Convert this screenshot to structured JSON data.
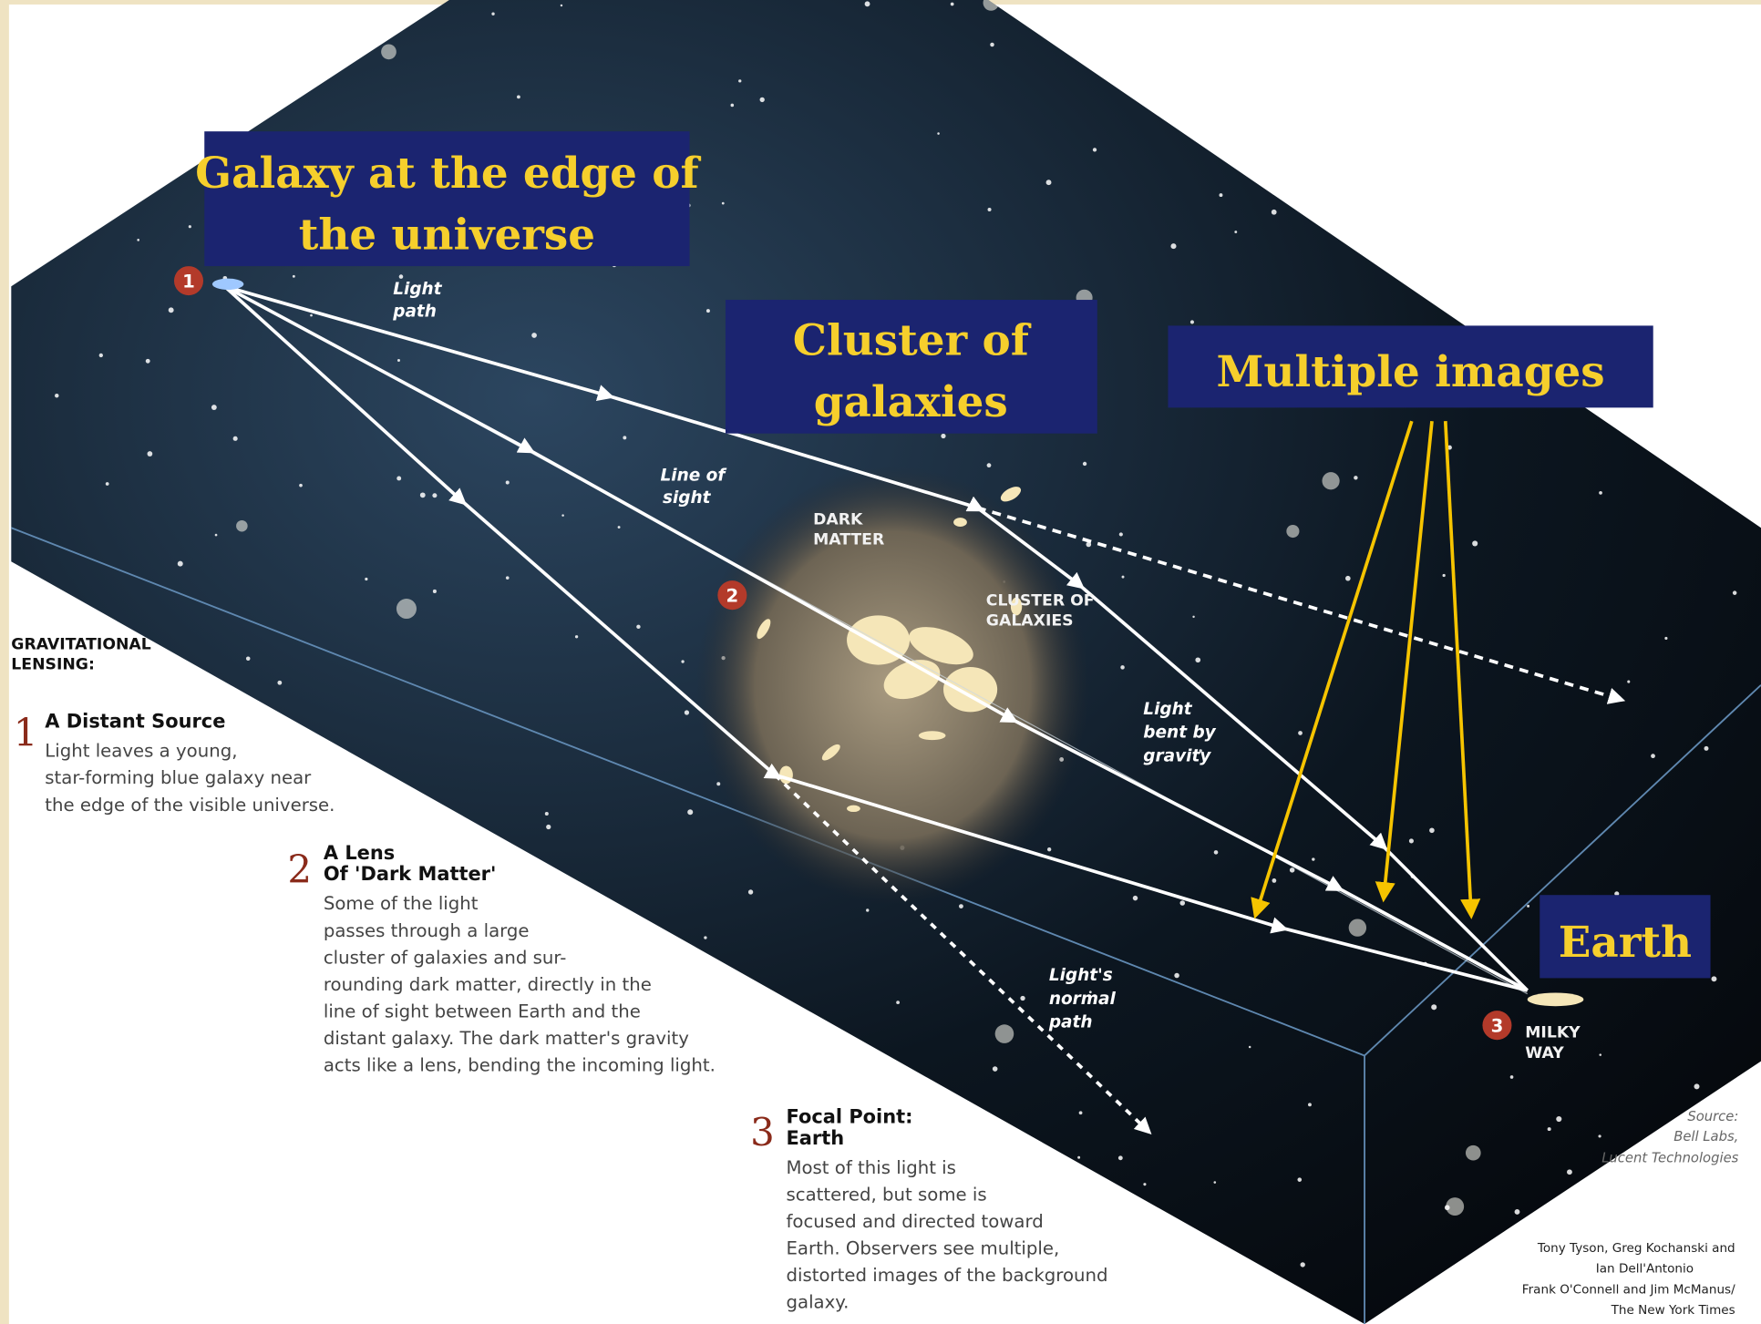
{
  "callouts": {
    "galaxy": [
      "Galaxy at the edge of",
      "the universe"
    ],
    "cluster": [
      "Cluster of",
      "galaxies"
    ],
    "multiple_images": "Multiple images",
    "earth": "Earth"
  },
  "diagram_labels": {
    "light_path": [
      "Light",
      "path"
    ],
    "line_of_sight": [
      "Line of",
      "sight"
    ],
    "dark_matter": [
      "DARK",
      "MATTER"
    ],
    "cluster_of_galaxies": [
      "CLUSTER OF",
      "GALAXIES"
    ],
    "light_bent": [
      "Light",
      "bent by",
      "gravity"
    ],
    "normal_path": [
      "Light's",
      "normal",
      "path"
    ],
    "milky_way": [
      "MILKY",
      "WAY"
    ]
  },
  "legend": {
    "title": [
      "GRAVITATIONAL",
      "LENSING:"
    ],
    "steps": [
      {
        "number": "1",
        "heading": [
          "A Distant Source"
        ],
        "text": [
          "Light leaves a young,",
          "star-forming blue galaxy near",
          "the edge of the visible universe."
        ]
      },
      {
        "number": "2",
        "heading": [
          "A Lens",
          "Of 'Dark Matter'"
        ],
        "text": [
          "Some of the light",
          "passes through a large",
          "cluster of galaxies and sur-",
          "rounding dark matter, directly in the",
          "line of sight between Earth and the",
          "distant galaxy. The dark matter's gravity",
          "acts like a lens, bending the incoming light."
        ]
      },
      {
        "number": "3",
        "heading": [
          "Focal Point:",
          "Earth"
        ],
        "text": [
          "Most of this light is",
          "scattered, but some is",
          "focused and directed toward",
          "Earth. Observers see multiple,",
          "distorted images of the background",
          "galaxy."
        ]
      }
    ]
  },
  "source": [
    "Source:",
    "Bell Labs,",
    "Lucent Technologies"
  ],
  "credits": [
    "Tony Tyson, Greg Kochanski and",
    "Ian Dell'Antonio",
    "Frank O'Connell and Jim McManus/",
    "The New York Times"
  ]
}
